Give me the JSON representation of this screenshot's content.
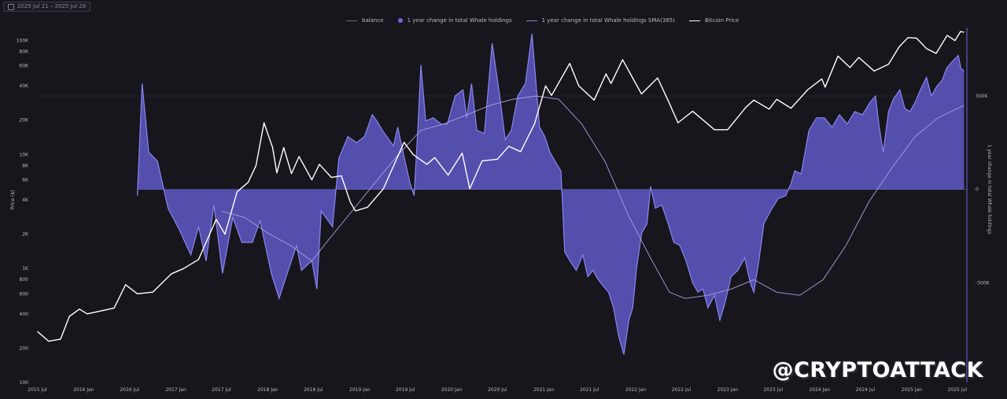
{
  "header": {
    "date_range": "2025 Jul 21 – 2025 Jul 28"
  },
  "legend": [
    {
      "label": "balance",
      "color": "#6d6c7c",
      "kind": "line"
    },
    {
      "label": "1 year change in total Whale holdings",
      "color": "#7068d8",
      "kind": "dot"
    },
    {
      "label": "1 year change in total Whale holdings SMA(365)",
      "color": "#8d88d0",
      "kind": "line"
    },
    {
      "label": "Bitcoin Price",
      "color": "#ffffff",
      "kind": "line"
    }
  ],
  "watermark": "@CRYPTOATTACK",
  "colors": {
    "background": "#17161c",
    "area": "#5a54b8",
    "area_edge": "#8b85f2",
    "price": "#ffffff",
    "sma": "#a6a2e2"
  },
  "chart_data": {
    "type": "area",
    "title": "",
    "xlabel": "",
    "ylabel_left": "Price ($)",
    "ylabel_right": "1 year change in total Whale holdings",
    "x_ticks": [
      "2015 Jul",
      "2016 Jan",
      "2016 Jul",
      "2017 Jan",
      "2017 Jul",
      "2018 Jan",
      "2018 Jul",
      "2019 Jan",
      "2019 Jul",
      "2020 Jan",
      "2020 Jul",
      "2021 Jan",
      "2021 Jul",
      "2022 Jan",
      "2022 Jul",
      "2023 Jan",
      "2023 Jul",
      "2024 Jan",
      "2024 Jul",
      "2025 Jan",
      "2025 Jul"
    ],
    "left_ticks": [
      "100",
      "200",
      "400",
      "600",
      "800",
      "1K",
      "2K",
      "4K",
      "6K",
      "8K",
      "10K",
      "20K",
      "40K",
      "60K",
      "80K",
      "100K"
    ],
    "right_ticks": [
      "300K",
      "0",
      "-300K"
    ],
    "left_scale": "log",
    "ylim_left": [
      100,
      130000
    ],
    "ylim_right": [
      -620000,
      520000
    ],
    "series": [
      {
        "name": "Bitcoin Price",
        "values": [
          [
            "2015-07-01",
            280
          ],
          [
            "2015-08-15",
            230
          ],
          [
            "2015-10-01",
            240
          ],
          [
            "2015-11-05",
            380
          ],
          [
            "2015-12-15",
            440
          ],
          [
            "2016-01-15",
            400
          ],
          [
            "2016-03-01",
            420
          ],
          [
            "2016-05-01",
            450
          ],
          [
            "2016-06-15",
            720
          ],
          [
            "2016-08-01",
            600
          ],
          [
            "2016-10-01",
            620
          ],
          [
            "2016-12-15",
            900
          ],
          [
            "2017-02-01",
            1000
          ],
          [
            "2017-04-01",
            1200
          ],
          [
            "2017-06-10",
            2700
          ],
          [
            "2017-07-15",
            2000
          ],
          [
            "2017-09-01",
            4700
          ],
          [
            "2017-10-15",
            5700
          ],
          [
            "2017-11-15",
            8000
          ],
          [
            "2017-12-17",
            19000
          ],
          [
            "2018-01-20",
            11500
          ],
          [
            "2018-02-06",
            6900
          ],
          [
            "2018-03-05",
            11500
          ],
          [
            "2018-04-05",
            6800
          ],
          [
            "2018-05-05",
            9600
          ],
          [
            "2018-06-25",
            6000
          ],
          [
            "2018-07-25",
            8200
          ],
          [
            "2018-09-10",
            6300
          ],
          [
            "2018-10-20",
            6500
          ],
          [
            "2018-11-25",
            3800
          ],
          [
            "2018-12-15",
            3200
          ],
          [
            "2019-02-01",
            3450
          ],
          [
            "2019-04-05",
            5000
          ],
          [
            "2019-06-26",
            12800
          ],
          [
            "2019-08-01",
            10000
          ],
          [
            "2019-09-25",
            8200
          ],
          [
            "2019-10-26",
            9400
          ],
          [
            "2019-12-18",
            6600
          ],
          [
            "2020-02-12",
            10300
          ],
          [
            "2020-03-13",
            5000
          ],
          [
            "2020-05-01",
            8800
          ],
          [
            "2020-07-01",
            9100
          ],
          [
            "2020-08-15",
            11800
          ],
          [
            "2020-10-01",
            10600
          ],
          [
            "2020-11-25",
            18500
          ],
          [
            "2021-01-08",
            40000
          ],
          [
            "2021-02-01",
            33000
          ],
          [
            "2021-04-14",
            63000
          ],
          [
            "2021-05-20",
            40000
          ],
          [
            "2021-07-20",
            30000
          ],
          [
            "2021-09-05",
            51000
          ],
          [
            "2021-09-25",
            42000
          ],
          [
            "2021-11-10",
            68000
          ],
          [
            "2022-01-24",
            34000
          ],
          [
            "2022-03-29",
            47000
          ],
          [
            "2022-05-12",
            29000
          ],
          [
            "2022-06-18",
            19000
          ],
          [
            "2022-08-15",
            24000
          ],
          [
            "2022-11-10",
            16500
          ],
          [
            "2023-01-01",
            16500
          ],
          [
            "2023-03-15",
            26000
          ],
          [
            "2023-04-15",
            30000
          ],
          [
            "2023-06-15",
            25000
          ],
          [
            "2023-07-15",
            30500
          ],
          [
            "2023-09-10",
            25500
          ],
          [
            "2023-11-15",
            37000
          ],
          [
            "2024-01-10",
            46000
          ],
          [
            "2024-01-23",
            39000
          ],
          [
            "2024-03-14",
            73000
          ],
          [
            "2024-05-01",
            58000
          ],
          [
            "2024-06-05",
            71000
          ],
          [
            "2024-08-05",
            54000
          ],
          [
            "2024-10-01",
            62000
          ],
          [
            "2024-11-12",
            88000
          ],
          [
            "2024-12-17",
            106000
          ],
          [
            "2025-01-20",
            105000
          ],
          [
            "2025-03-01",
            85000
          ],
          [
            "2025-04-08",
            77000
          ],
          [
            "2025-05-22",
            111000
          ],
          [
            "2025-06-22",
            100000
          ],
          [
            "2025-07-14",
            120000
          ],
          [
            "2025-07-28",
            118000
          ]
        ]
      },
      {
        "name": "1 year change in total Whale holdings",
        "values": [
          [
            "2016-08-01",
            -20000
          ],
          [
            "2016-08-20",
            340000
          ],
          [
            "2016-09-15",
            120000
          ],
          [
            "2016-10-20",
            90000
          ],
          [
            "2016-12-01",
            -60000
          ],
          [
            "2017-01-15",
            -130000
          ],
          [
            "2017-03-01",
            -210000
          ],
          [
            "2017-04-01",
            -120000
          ],
          [
            "2017-05-01",
            -230000
          ],
          [
            "2017-06-01",
            -50000
          ],
          [
            "2017-07-05",
            -270000
          ],
          [
            "2017-08-15",
            -90000
          ],
          [
            "2017-09-20",
            -170000
          ],
          [
            "2017-11-01",
            -170000
          ],
          [
            "2017-12-01",
            -100000
          ],
          [
            "2018-01-15",
            -270000
          ],
          [
            "2018-02-15",
            -350000
          ],
          [
            "2018-03-15",
            -280000
          ],
          [
            "2018-04-25",
            -180000
          ],
          [
            "2018-05-15",
            -260000
          ],
          [
            "2018-06-10",
            -240000
          ],
          [
            "2018-06-25",
            -230000
          ],
          [
            "2018-07-15",
            -320000
          ],
          [
            "2018-08-01",
            -70000
          ],
          [
            "2018-09-15",
            -120000
          ],
          [
            "2018-10-10",
            100000
          ],
          [
            "2018-11-15",
            170000
          ],
          [
            "2018-12-20",
            150000
          ],
          [
            "2019-01-20",
            170000
          ],
          [
            "2019-02-20",
            240000
          ],
          [
            "2019-03-10",
            220000
          ],
          [
            "2019-04-01",
            190000
          ],
          [
            "2019-05-15",
            140000
          ],
          [
            "2019-06-01",
            200000
          ],
          [
            "2019-06-25",
            110000
          ],
          [
            "2019-07-20",
            20000
          ],
          [
            "2019-08-05",
            -20000
          ],
          [
            "2019-08-20",
            200000
          ],
          [
            "2019-09-01",
            400000
          ],
          [
            "2019-09-20",
            220000
          ],
          [
            "2019-10-20",
            230000
          ],
          [
            "2019-11-20",
            210000
          ],
          [
            "2019-12-15",
            210000
          ],
          [
            "2020-01-15",
            300000
          ],
          [
            "2020-02-15",
            320000
          ],
          [
            "2020-03-01",
            230000
          ],
          [
            "2020-03-20",
            340000
          ],
          [
            "2020-04-10",
            190000
          ],
          [
            "2020-05-10",
            180000
          ],
          [
            "2020-06-10",
            470000
          ],
          [
            "2020-07-10",
            300000
          ],
          [
            "2020-08-01",
            160000
          ],
          [
            "2020-08-25",
            190000
          ],
          [
            "2020-09-20",
            300000
          ],
          [
            "2020-10-20",
            340000
          ],
          [
            "2020-11-15",
            500000
          ],
          [
            "2020-12-15",
            200000
          ],
          [
            "2021-01-05",
            170000
          ],
          [
            "2021-01-25",
            120000
          ],
          [
            "2021-02-15",
            90000
          ],
          [
            "2021-03-10",
            60000
          ],
          [
            "2021-03-25",
            -200000
          ],
          [
            "2021-04-15",
            -230000
          ],
          [
            "2021-05-10",
            -260000
          ],
          [
            "2021-06-05",
            -210000
          ],
          [
            "2021-06-25",
            -280000
          ],
          [
            "2021-07-15",
            -260000
          ],
          [
            "2021-08-05",
            -290000
          ],
          [
            "2021-08-25",
            -310000
          ],
          [
            "2021-09-15",
            -330000
          ],
          [
            "2021-10-05",
            -380000
          ],
          [
            "2021-10-25",
            -470000
          ],
          [
            "2021-11-15",
            -530000
          ],
          [
            "2021-12-05",
            -420000
          ],
          [
            "2021-12-20",
            -380000
          ],
          [
            "2022-01-05",
            -250000
          ],
          [
            "2022-01-25",
            -140000
          ],
          [
            "2022-02-15",
            -110000
          ],
          [
            "2022-03-01",
            10000
          ],
          [
            "2022-03-20",
            -60000
          ],
          [
            "2022-04-15",
            -50000
          ],
          [
            "2022-05-10",
            -110000
          ],
          [
            "2022-06-01",
            -170000
          ],
          [
            "2022-06-25",
            -180000
          ],
          [
            "2022-07-20",
            -230000
          ],
          [
            "2022-08-15",
            -300000
          ],
          [
            "2022-09-05",
            -330000
          ],
          [
            "2022-09-25",
            -320000
          ],
          [
            "2022-10-15",
            -380000
          ],
          [
            "2022-11-10",
            -340000
          ],
          [
            "2022-12-01",
            -420000
          ],
          [
            "2022-12-20",
            -370000
          ],
          [
            "2023-01-15",
            -280000
          ],
          [
            "2023-02-10",
            -260000
          ],
          [
            "2023-03-10",
            -220000
          ],
          [
            "2023-04-01",
            -300000
          ],
          [
            "2023-04-15",
            -330000
          ],
          [
            "2023-05-05",
            -230000
          ],
          [
            "2023-05-25",
            -110000
          ],
          [
            "2023-06-20",
            -70000
          ],
          [
            "2023-07-20",
            -30000
          ],
          [
            "2023-08-20",
            -20000
          ],
          [
            "2023-09-10",
            20000
          ],
          [
            "2023-09-25",
            60000
          ],
          [
            "2023-10-20",
            50000
          ],
          [
            "2023-11-20",
            190000
          ],
          [
            "2023-12-20",
            230000
          ],
          [
            "2024-01-20",
            230000
          ],
          [
            "2024-02-20",
            200000
          ],
          [
            "2024-03-20",
            240000
          ],
          [
            "2024-04-20",
            210000
          ],
          [
            "2024-05-20",
            250000
          ],
          [
            "2024-06-20",
            240000
          ],
          [
            "2024-07-20",
            280000
          ],
          [
            "2024-08-10",
            300000
          ],
          [
            "2024-08-25",
            200000
          ],
          [
            "2024-09-10",
            120000
          ],
          [
            "2024-10-01",
            250000
          ],
          [
            "2024-10-20",
            290000
          ],
          [
            "2024-11-15",
            320000
          ],
          [
            "2024-12-05",
            260000
          ],
          [
            "2024-12-25",
            250000
          ],
          [
            "2025-01-15",
            280000
          ],
          [
            "2025-02-10",
            330000
          ],
          [
            "2025-03-01",
            360000
          ],
          [
            "2025-03-20",
            300000
          ],
          [
            "2025-04-10",
            330000
          ],
          [
            "2025-05-01",
            350000
          ],
          [
            "2025-05-20",
            390000
          ],
          [
            "2025-06-10",
            410000
          ],
          [
            "2025-07-05",
            430000
          ],
          [
            "2025-07-15",
            390000
          ],
          [
            "2025-07-28",
            380000
          ]
        ]
      },
      {
        "name": "1 year change in total Whale holdings SMA(365)",
        "values": [
          [
            "2017-07-01",
            -70000
          ],
          [
            "2017-10-01",
            -90000
          ],
          [
            "2018-01-01",
            -140000
          ],
          [
            "2018-04-01",
            -180000
          ],
          [
            "2018-06-25",
            -230000
          ],
          [
            "2018-09-01",
            -160000
          ],
          [
            "2018-12-01",
            -70000
          ],
          [
            "2019-03-01",
            20000
          ],
          [
            "2019-06-01",
            110000
          ],
          [
            "2019-09-01",
            190000
          ],
          [
            "2019-12-01",
            210000
          ],
          [
            "2020-03-01",
            240000
          ],
          [
            "2020-06-01",
            270000
          ],
          [
            "2020-09-01",
            290000
          ],
          [
            "2020-12-01",
            300000
          ],
          [
            "2021-03-01",
            290000
          ],
          [
            "2021-06-01",
            210000
          ],
          [
            "2021-09-01",
            90000
          ],
          [
            "2021-12-01",
            -80000
          ],
          [
            "2022-03-01",
            -220000
          ],
          [
            "2022-05-15",
            -330000
          ],
          [
            "2022-07-15",
            -350000
          ],
          [
            "2022-10-15",
            -340000
          ],
          [
            "2023-01-15",
            -320000
          ],
          [
            "2023-04-15",
            -290000
          ],
          [
            "2023-07-15",
            -330000
          ],
          [
            "2023-10-15",
            -340000
          ],
          [
            "2024-01-15",
            -290000
          ],
          [
            "2024-04-15",
            -180000
          ],
          [
            "2024-07-15",
            -40000
          ],
          [
            "2024-10-15",
            70000
          ],
          [
            "2025-01-15",
            170000
          ],
          [
            "2025-04-15",
            230000
          ],
          [
            "2025-07-28",
            270000
          ]
        ]
      }
    ],
    "grid": false,
    "legend_position": "top-center"
  }
}
